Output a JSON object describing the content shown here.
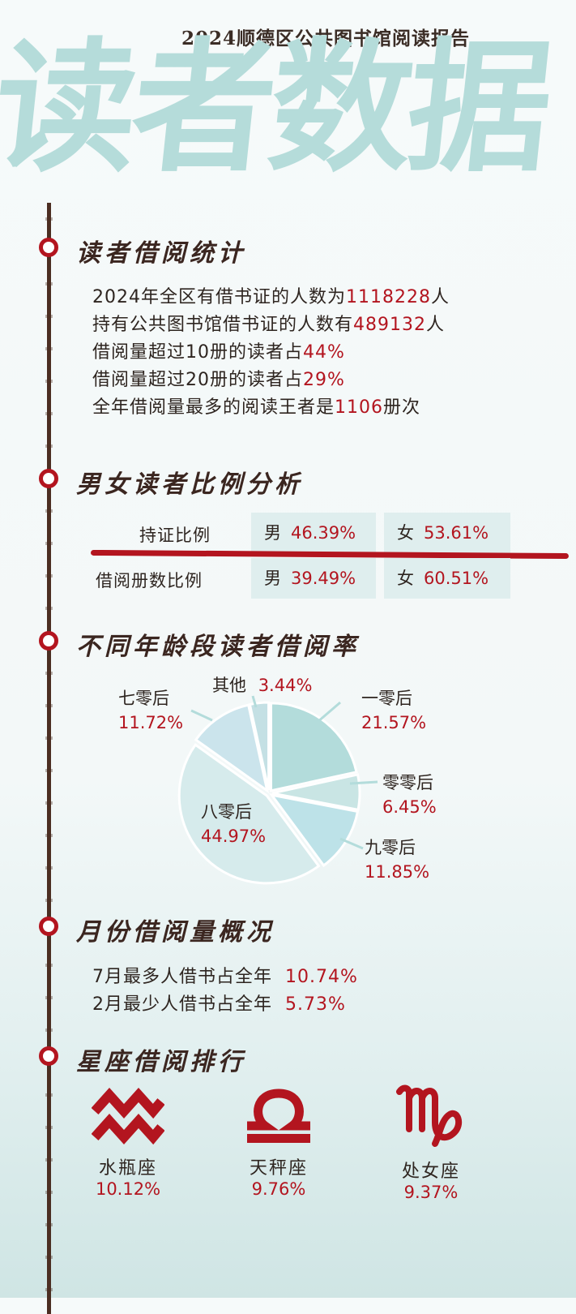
{
  "header": {
    "report_title": "2024顺德区公共图书馆阅读报告",
    "big_title": "读者数据"
  },
  "sections": {
    "borrow_stats": {
      "title": "读者借阅统计",
      "lines": [
        {
          "text": "2024年全区有借书证的人数为",
          "value": "1118228",
          "unit": "人"
        },
        {
          "text": "持有公共图书馆借书证的人数有",
          "value": "489132",
          "unit": "人"
        },
        {
          "text": "借阅量超过10册的读者占",
          "value": "44%",
          "unit": ""
        },
        {
          "text": "借阅量超过20册的读者占",
          "value": "29%",
          "unit": ""
        },
        {
          "text": "全年借阅量最多的阅读王者是",
          "value": "1106",
          "unit": "册次"
        }
      ]
    },
    "gender": {
      "title": "男女读者比例分析",
      "rows": [
        {
          "label": "持证比例",
          "male_label": "男",
          "male_pct": "46.39%",
          "female_label": "女",
          "female_pct": "53.61%"
        },
        {
          "label": "借阅册数比例",
          "male_label": "男",
          "male_pct": "39.49%",
          "female_label": "女",
          "female_pct": "60.51%"
        }
      ]
    },
    "age": {
      "title": "不同年龄段读者借阅率"
    },
    "monthly": {
      "title": "月份借阅量概况",
      "lines": [
        {
          "text": "7月最多人借书占全年",
          "value": "10.74%"
        },
        {
          "text": "2月最少人借书占全年",
          "value": "5.73%"
        }
      ]
    },
    "zodiac": {
      "title": "星座借阅排行",
      "items": [
        {
          "name": "水瓶座",
          "pct": "10.12%",
          "icon": "aquarius-icon"
        },
        {
          "name": "天秤座",
          "pct": "9.76%",
          "icon": "libra-icon"
        },
        {
          "name": "处女座",
          "pct": "9.37%",
          "icon": "virgo-icon"
        }
      ]
    }
  },
  "colors": {
    "accent_red": "#b3151f",
    "title_watermark": "#b5dcda",
    "timeline_brown": "#4b2e22"
  },
  "chart_data": {
    "type": "pie",
    "title": "",
    "categories": [
      "一零后",
      "零零后",
      "九零后",
      "八零后",
      "七零后",
      "其他"
    ],
    "values": [
      21.57,
      6.45,
      11.85,
      44.97,
      11.72,
      3.44
    ],
    "labels": [
      "21.57%",
      "6.45%",
      "11.85%",
      "44.97%",
      "11.72%",
      "3.44%"
    ],
    "colors": [
      "#b3dcdb",
      "#c9e5e4",
      "#bde2e8",
      "#d6ebec",
      "#cbe4ec",
      "#c4e0e4"
    ]
  }
}
